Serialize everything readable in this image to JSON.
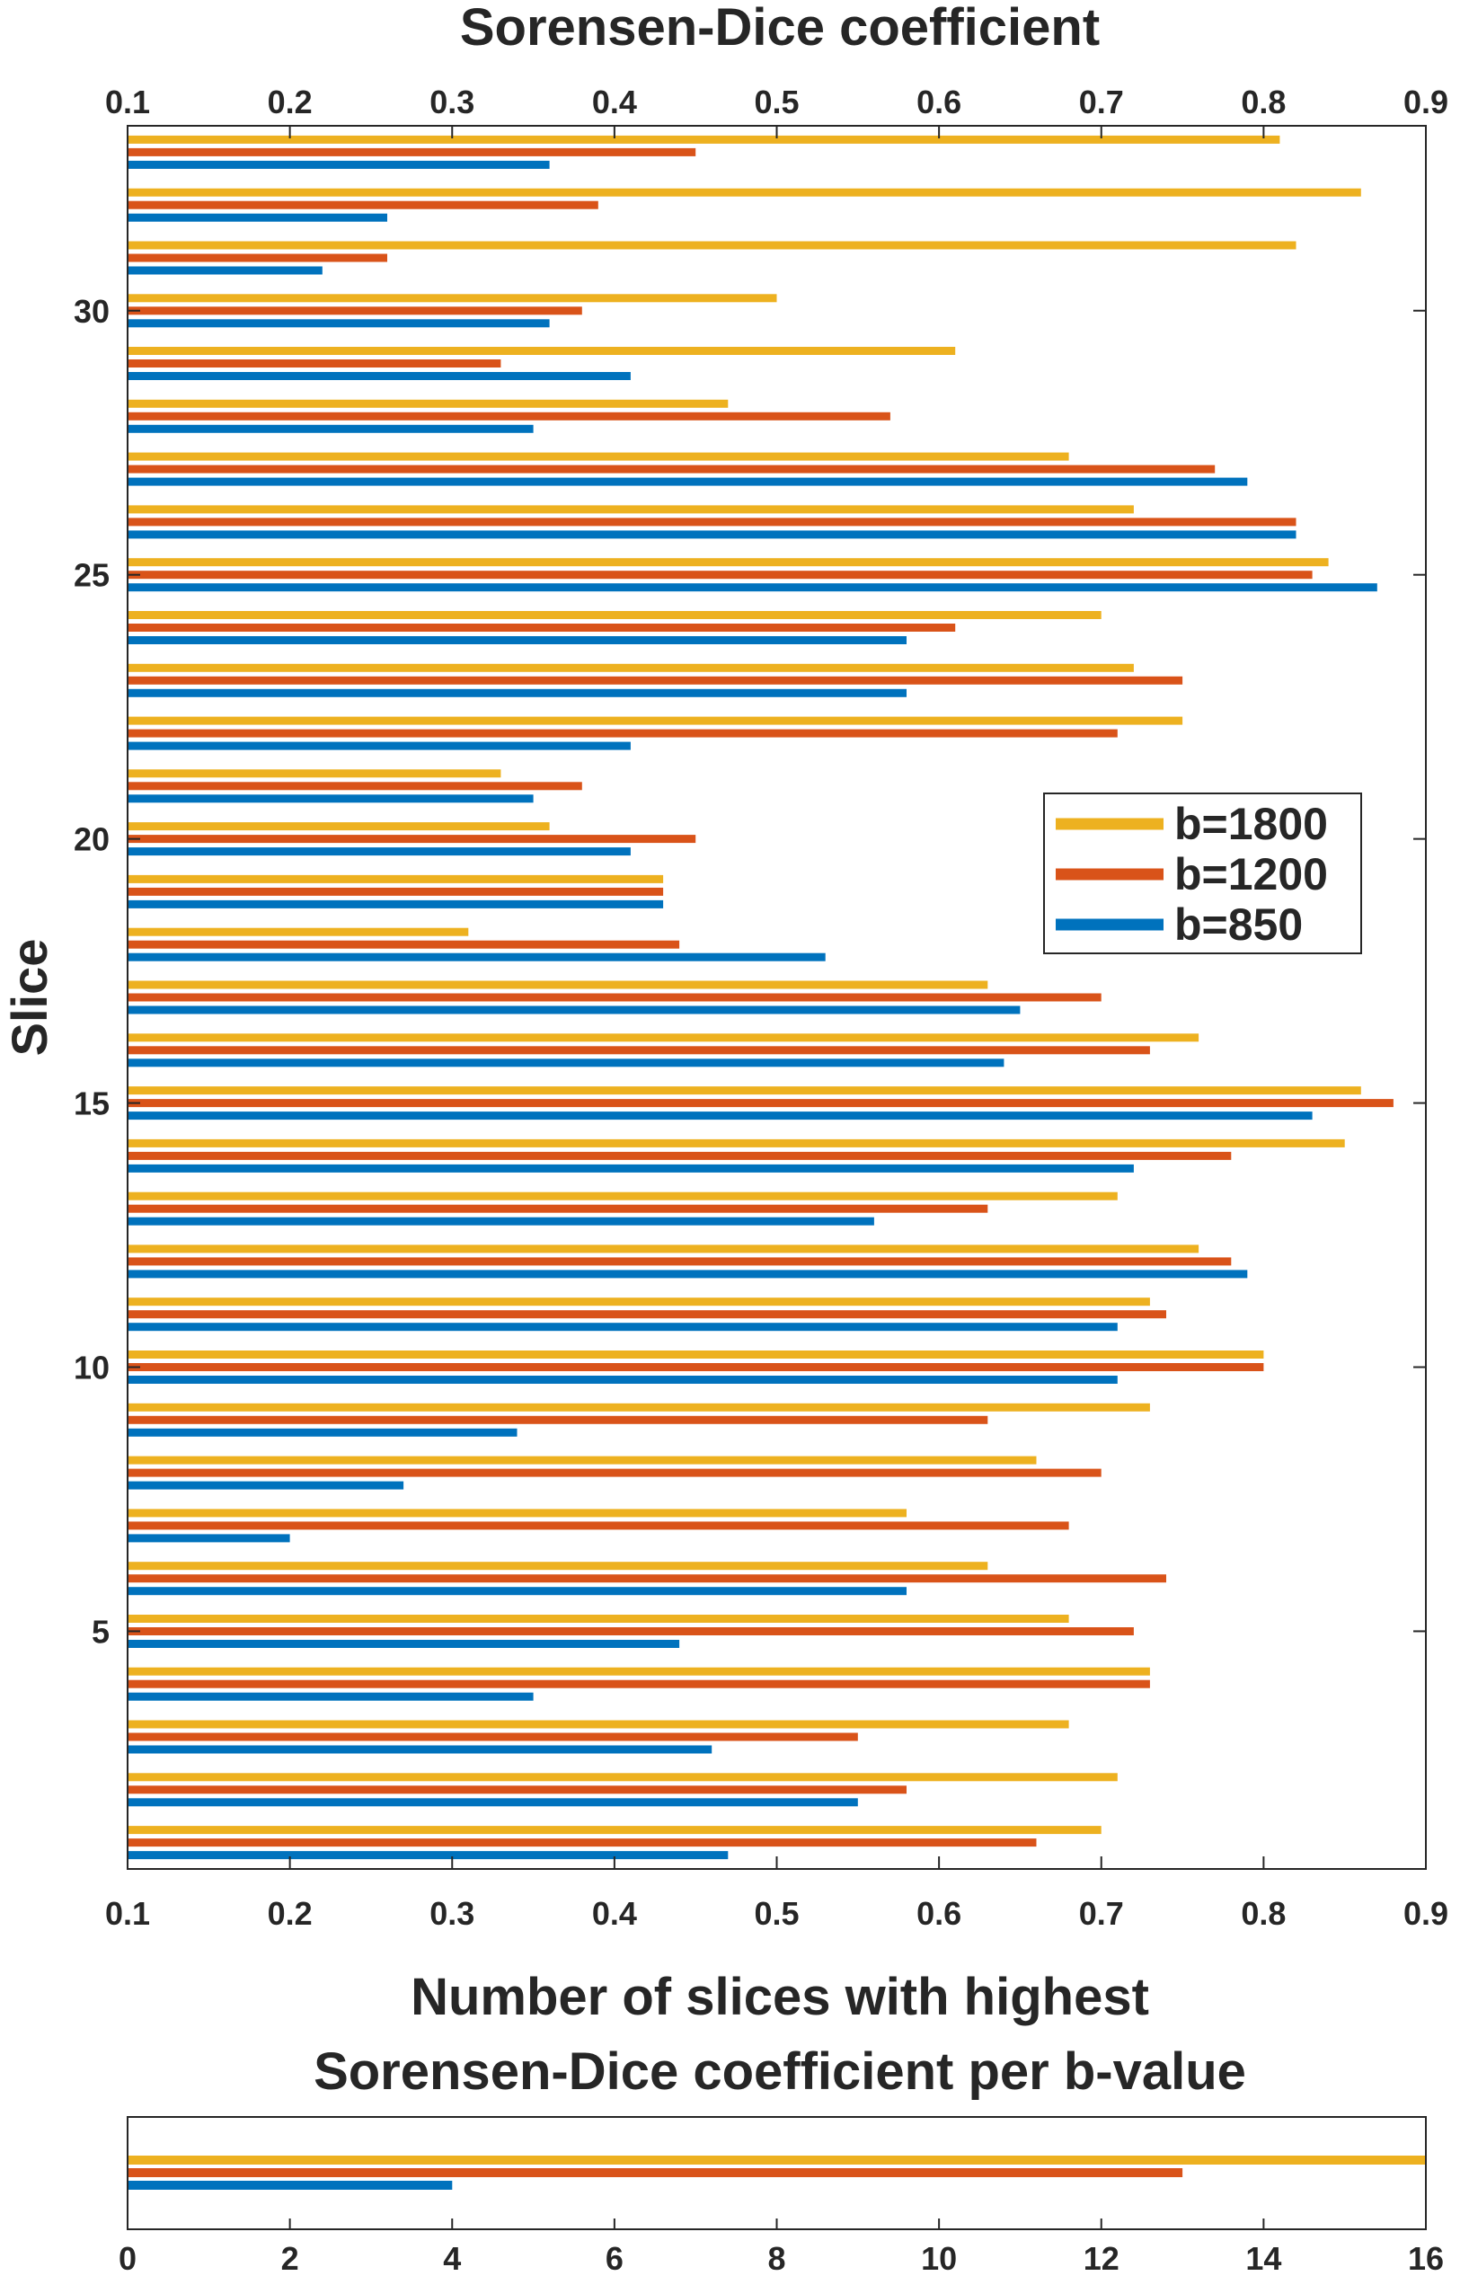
{
  "colors": {
    "b1800": "#EDB120",
    "b1200": "#D95319",
    "b850": "#0072BD",
    "axis": "#262626"
  },
  "chart_data": [
    {
      "type": "bar",
      "orientation": "horizontal",
      "title": "Sorensen-Dice coefficient",
      "xlabel": "",
      "ylabel": "Slice",
      "xlim": [
        0.1,
        0.9
      ],
      "xticks": [
        "0.1",
        "0.2",
        "0.3",
        "0.4",
        "0.5",
        "0.6",
        "0.7",
        "0.8",
        "0.9"
      ],
      "ylim": [
        0.5,
        33.5
      ],
      "yticks": [
        "5",
        "10",
        "15",
        "20",
        "25",
        "30"
      ],
      "legend_position": "right",
      "categories": [
        1,
        2,
        3,
        4,
        5,
        6,
        7,
        8,
        9,
        10,
        11,
        12,
        13,
        14,
        15,
        16,
        17,
        18,
        19,
        20,
        21,
        22,
        23,
        24,
        25,
        26,
        27,
        28,
        29,
        30,
        31,
        32,
        33
      ],
      "series": [
        {
          "name": "b=1800",
          "key": "b1800",
          "values": [
            0.7,
            0.71,
            0.68,
            0.73,
            0.68,
            0.63,
            0.58,
            0.66,
            0.73,
            0.8,
            0.73,
            0.76,
            0.71,
            0.85,
            0.86,
            0.76,
            0.63,
            0.31,
            0.43,
            0.36,
            0.33,
            0.75,
            0.72,
            0.7,
            0.84,
            0.72,
            0.68,
            0.47,
            0.61,
            0.5,
            0.82,
            0.86,
            0.81
          ]
        },
        {
          "name": "b=1200",
          "key": "b1200",
          "values": [
            0.66,
            0.58,
            0.55,
            0.73,
            0.72,
            0.74,
            0.68,
            0.7,
            0.63,
            0.8,
            0.74,
            0.78,
            0.63,
            0.78,
            0.88,
            0.73,
            0.7,
            0.44,
            0.43,
            0.45,
            0.38,
            0.71,
            0.75,
            0.61,
            0.83,
            0.82,
            0.77,
            0.57,
            0.33,
            0.38,
            0.26,
            0.39,
            0.45
          ]
        },
        {
          "name": "b=850",
          "key": "b850",
          "values": [
            0.47,
            0.55,
            0.46,
            0.35,
            0.44,
            0.58,
            0.2,
            0.27,
            0.34,
            0.71,
            0.71,
            0.79,
            0.56,
            0.72,
            0.83,
            0.64,
            0.65,
            0.53,
            0.43,
            0.41,
            0.35,
            0.41,
            0.58,
            0.58,
            0.87,
            0.82,
            0.79,
            0.35,
            0.41,
            0.36,
            0.22,
            0.26,
            0.36
          ]
        }
      ]
    },
    {
      "type": "bar",
      "orientation": "horizontal",
      "title_lines": [
        "Number of slices with highest",
        "Sorensen-Dice coefficient per b-value"
      ],
      "xlabel": "",
      "ylabel": "",
      "xlim": [
        0,
        16
      ],
      "xticks": [
        "0",
        "2",
        "4",
        "6",
        "8",
        "10",
        "12",
        "14",
        "16"
      ],
      "series": [
        {
          "name": "b=1800",
          "key": "b1800",
          "value": 16
        },
        {
          "name": "b=1200",
          "key": "b1200",
          "value": 13
        },
        {
          "name": "b=850",
          "key": "b850",
          "value": 4
        }
      ]
    }
  ]
}
